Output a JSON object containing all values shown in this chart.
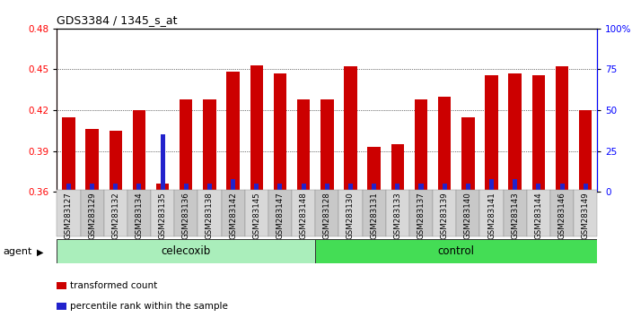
{
  "title": "GDS3384 / 1345_s_at",
  "categories": [
    "GSM283127",
    "GSM283129",
    "GSM283132",
    "GSM283134",
    "GSM283135",
    "GSM283136",
    "GSM283138",
    "GSM283142",
    "GSM283145",
    "GSM283147",
    "GSM283148",
    "GSM283128",
    "GSM283130",
    "GSM283131",
    "GSM283133",
    "GSM283137",
    "GSM283139",
    "GSM283140",
    "GSM283141",
    "GSM283143",
    "GSM283144",
    "GSM283146",
    "GSM283149"
  ],
  "red_values": [
    0.415,
    0.406,
    0.405,
    0.42,
    0.366,
    0.428,
    0.428,
    0.448,
    0.453,
    0.447,
    0.428,
    0.428,
    0.452,
    0.393,
    0.395,
    0.428,
    0.43,
    0.415,
    0.446,
    0.447,
    0.446,
    0.452,
    0.42
  ],
  "blue_pct": [
    5,
    5,
    5,
    5,
    35,
    5,
    5,
    8,
    5,
    5,
    5,
    5,
    5,
    5,
    5,
    5,
    5,
    5,
    8,
    8,
    5,
    5,
    5
  ],
  "celecoxib_count": 11,
  "control_count": 12,
  "ylim_left": [
    0.36,
    0.48
  ],
  "ylim_right": [
    0,
    100
  ],
  "yticks_left": [
    0.36,
    0.39,
    0.42,
    0.45,
    0.48
  ],
  "yticks_right": [
    0,
    25,
    50,
    75,
    100
  ],
  "bar_width": 0.55,
  "red_color": "#cc0000",
  "blue_color": "#2222cc",
  "celecoxib_bg": "#aaeebb",
  "control_bg": "#44dd55",
  "legend_red": "transformed count",
  "legend_blue": "percentile rank within the sample",
  "agent_label": "agent"
}
